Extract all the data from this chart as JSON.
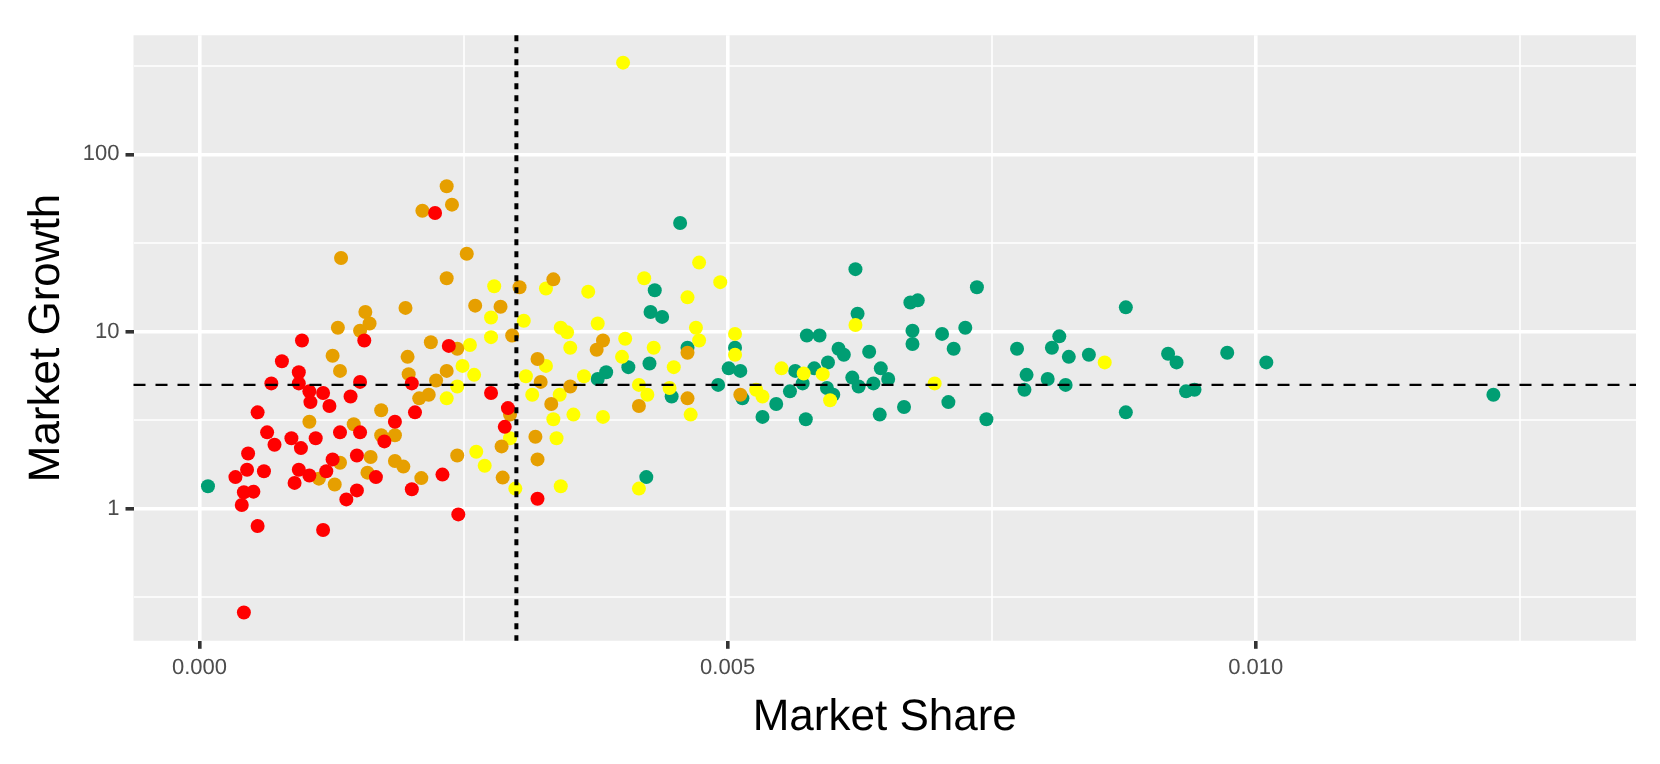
{
  "chart_data": {
    "type": "scatter",
    "xlabel": "Market Share",
    "ylabel": "Market Growth",
    "log": "y",
    "grid": true,
    "legend": false,
    "marker": "circle",
    "xlim": [
      -0.000625,
      0.0136
    ],
    "ylim": [
      0.18,
      470
    ],
    "xticks": [
      {
        "value": 0,
        "label": "0.000"
      },
      {
        "value": 0.0025,
        "label": null
      },
      {
        "value": 0.005,
        "label": "0.005"
      },
      {
        "value": 0.0075,
        "label": null
      },
      {
        "value": 0.01,
        "label": "0.010"
      },
      {
        "value": 0.0125,
        "label": null
      }
    ],
    "yticks": [
      {
        "value": 0.316,
        "label": null
      },
      1,
      {
        "value": 3.16,
        "label": null
      },
      10,
      {
        "value": 31.6,
        "label": null
      },
      100,
      {
        "value": 316,
        "label": null
      }
    ],
    "ref_lines": [
      {
        "axis": "x",
        "value": 0.003,
        "color": "#000000",
        "line_style": "dotted"
      },
      {
        "axis": "y",
        "value": 5,
        "color": "#000000",
        "line_style": "dashed"
      }
    ],
    "series": [
      {
        "color": "#ff0000",
        "x": [
          0.00097,
          0.00156,
          0.00078,
          0.00094,
          0.00068,
          0.00094,
          0.00152,
          0.00201,
          0.00236,
          0.00104,
          0.00117,
          0.00105,
          0.00143,
          0.00123,
          0.00055,
          0.00185,
          0.00204,
          0.00276,
          0.00292,
          0.00289,
          0.00064,
          0.00087,
          0.0011,
          0.00133,
          0.00152,
          0.00071,
          0.00096,
          0.00175,
          0.00046,
          0.00126,
          0.00149,
          0.00045,
          0.00061,
          0.00094,
          0.0012,
          0.00034,
          0.0009,
          0.00104,
          0.00167,
          0.0023,
          0.00042,
          0.00051,
          0.00149,
          0.00201,
          0.00139,
          0.0004,
          0.00055,
          0.00117,
          0.00245,
          0.0032,
          0.00042,
          0.00223
        ],
        "values": [
          8.9,
          8.9,
          6.8,
          5.9,
          5.1,
          5.1,
          5.2,
          5.1,
          8.3,
          4.6,
          4.5,
          4.0,
          4.3,
          3.8,
          3.5,
          3.1,
          3.5,
          4.5,
          3.7,
          2.9,
          2.7,
          2.5,
          2.5,
          2.7,
          2.7,
          2.3,
          2.2,
          2.4,
          2.05,
          1.9,
          2.0,
          1.66,
          1.63,
          1.66,
          1.63,
          1.51,
          1.4,
          1.54,
          1.51,
          1.56,
          1.24,
          1.25,
          1.27,
          1.29,
          1.13,
          1.05,
          0.8,
          0.76,
          0.93,
          1.14,
          0.26,
          46.7
        ]
      },
      {
        "color": "#e69f00",
        "x": [
          0.00234,
          0.00239,
          0.00211,
          0.00134,
          0.00253,
          0.00234,
          0.00303,
          0.00335,
          0.00195,
          0.00157,
          0.00161,
          0.00131,
          0.00261,
          0.00285,
          0.00152,
          0.00126,
          0.00133,
          0.00197,
          0.00219,
          0.00244,
          0.00198,
          0.00224,
          0.00234,
          0.00217,
          0.00208,
          0.00172,
          0.00104,
          0.00146,
          0.00172,
          0.00185,
          0.00162,
          0.00133,
          0.00185,
          0.00193,
          0.00159,
          0.00113,
          0.00128,
          0.0021,
          0.00244,
          0.00286,
          0.00287,
          0.00294,
          0.00382,
          0.00376,
          0.0032,
          0.00323,
          0.00351,
          0.00333,
          0.00416,
          0.00462,
          0.00462,
          0.00512,
          0.00318,
          0.0032,
          0.00296
        ],
        "values": [
          66,
          52,
          48,
          26,
          27.5,
          20,
          17.8,
          19.7,
          13.6,
          12.9,
          11.1,
          10.5,
          14,
          13.8,
          10.1,
          7.3,
          6.0,
          7.2,
          8.7,
          8.0,
          5.75,
          5.3,
          6.0,
          4.4,
          4.2,
          3.6,
          3.1,
          3.0,
          2.6,
          2.6,
          1.96,
          1.82,
          1.86,
          1.73,
          1.6,
          1.48,
          1.37,
          1.49,
          2.0,
          2.25,
          1.5,
          3.4,
          8.9,
          7.9,
          7.0,
          5.2,
          4.9,
          3.9,
          3.8,
          7.6,
          4.2,
          4.4,
          2.55,
          1.9,
          9.5
        ]
      },
      {
        "color": "#ffff00",
        "x": [
          0.00279,
          0.00328,
          0.00276,
          0.00307,
          0.00342,
          0.00401,
          0.00473,
          0.00493,
          0.00421,
          0.00368,
          0.00462,
          0.00377,
          0.0047,
          0.00507,
          0.00621,
          0.00348,
          0.00351,
          0.004,
          0.00449,
          0.0043,
          0.00507,
          0.00403,
          0.00473,
          0.00328,
          0.00309,
          0.00364,
          0.00315,
          0.00341,
          0.00416,
          0.00445,
          0.00527,
          0.00533,
          0.00424,
          0.00354,
          0.00382,
          0.00465,
          0.00335,
          0.00338,
          0.00551,
          0.00572,
          0.0059,
          0.00696,
          0.00597,
          0.00342,
          0.00416,
          0.00299,
          0.00276,
          0.00256,
          0.00249,
          0.0026,
          0.00234,
          0.00244,
          0.00262,
          0.0027,
          0.00294,
          0.00857
        ],
        "values": [
          18,
          17.5,
          12,
          11.5,
          10.5,
          329,
          24.5,
          19,
          20,
          16.8,
          15.6,
          11.1,
          10.5,
          9.7,
          10.9,
          9.9,
          8.1,
          7.2,
          6.3,
          8.1,
          7.4,
          9.1,
          8.9,
          6.4,
          5.6,
          5.6,
          4.4,
          4.4,
          5.0,
          4.8,
          4.7,
          4.3,
          4.4,
          3.4,
          3.3,
          3.4,
          3.2,
          2.5,
          6.2,
          5.8,
          5.75,
          5.1,
          4.1,
          1.34,
          1.3,
          1.3,
          9.3,
          8.4,
          6.4,
          5.7,
          4.2,
          4.9,
          2.1,
          1.75,
          2.5,
          6.7
        ]
      },
      {
        "color": "#009e73",
        "x": [
          8e-05,
          0.00455,
          0.00621,
          0.00431,
          0.00736,
          0.00427,
          0.00438,
          0.00623,
          0.00673,
          0.0068,
          0.00675,
          0.00703,
          0.00725,
          0.00575,
          0.00587,
          0.00605,
          0.0061,
          0.00634,
          0.00714,
          0.00675,
          0.00462,
          0.00507,
          0.00426,
          0.00406,
          0.00385,
          0.00377,
          0.00501,
          0.00512,
          0.00564,
          0.00582,
          0.00595,
          0.00645,
          0.00618,
          0.00638,
          0.00652,
          0.00624,
          0.00594,
          0.00571,
          0.00491,
          0.00447,
          0.00514,
          0.00559,
          0.006,
          0.00546,
          0.00533,
          0.00574,
          0.00644,
          0.00667,
          0.00709,
          0.00745,
          0.00423,
          0.00877,
          0.00774,
          0.00814,
          0.00807,
          0.00823,
          0.00842,
          0.00783,
          0.00803,
          0.00781,
          0.0082,
          0.00877,
          0.00917,
          0.00925,
          0.00973,
          0.0101,
          0.00934,
          0.00942,
          0.01225
        ],
        "values": [
          1.34,
          41,
          22.5,
          17.1,
          17.8,
          12.9,
          12.1,
          12.6,
          14.6,
          15,
          10.1,
          9.7,
          10.5,
          9.5,
          9.5,
          8.0,
          7.4,
          7.7,
          8.0,
          8.5,
          8.1,
          8.1,
          6.6,
          6.3,
          5.9,
          5.4,
          6.2,
          6.0,
          6.0,
          6.2,
          6.7,
          6.2,
          5.5,
          5.1,
          5.4,
          4.9,
          4.8,
          5.1,
          5.0,
          4.3,
          4.2,
          4.6,
          4.4,
          3.9,
          3.3,
          3.2,
          3.4,
          3.75,
          4.0,
          3.2,
          1.51,
          13.7,
          8.0,
          9.4,
          8.1,
          7.2,
          7.4,
          5.7,
          5.4,
          4.7,
          5.0,
          3.5,
          7.5,
          6.7,
          7.6,
          6.7,
          4.6,
          4.7,
          4.4
        ]
      }
    ]
  }
}
